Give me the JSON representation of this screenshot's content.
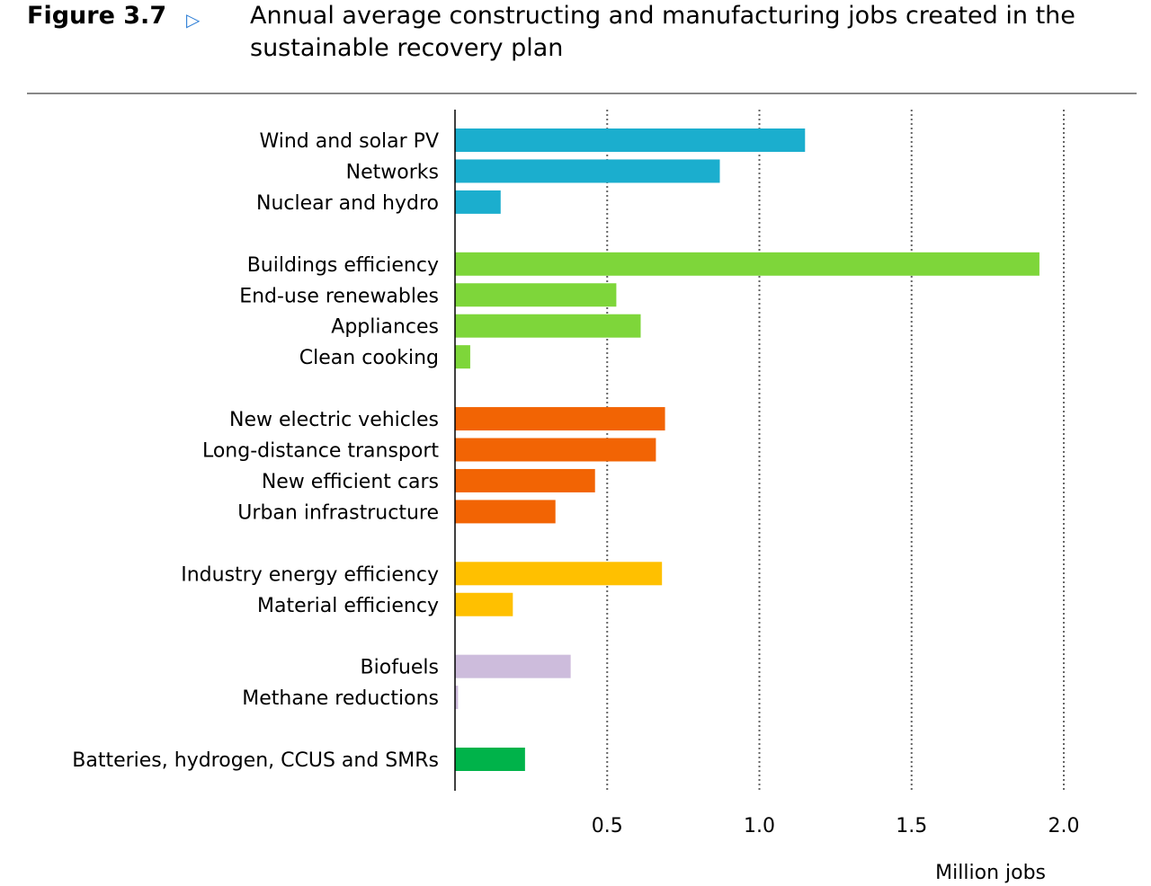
{
  "figure_label": "Figure 3.7",
  "figure_icon": "triangle-right-icon",
  "chart_data": {
    "type": "bar",
    "orientation": "horizontal",
    "title": "Annual average constructing and manufacturing jobs created in the sustainable recovery plan",
    "xlabel": "Million jobs",
    "ylabel": "",
    "xlim": [
      0,
      2.0
    ],
    "xticks": [
      "0.5",
      "1.0",
      "1.5",
      "2.0"
    ],
    "xtick_values": [
      0.5,
      1.0,
      1.5,
      2.0
    ],
    "grid": "vertical dotted",
    "legend": "none",
    "group_colors": [
      "#1BAECE",
      "#7ED63A",
      "#F26404",
      "#FFC000",
      "#CDBCDC",
      "#00B34A"
    ],
    "categories": [
      "Wind and solar PV",
      "Networks",
      "Nuclear and hydro",
      "Buildings efficiency",
      "End-use renewables",
      "Appliances",
      "Clean cooking",
      "New electric vehicles",
      "Long-distance transport",
      "New efficient cars",
      "Urban infrastructure",
      "Industry energy efficiency",
      "Material efficiency",
      "Biofuels",
      "Methane reductions",
      "Batteries, hydrogen, CCUS and SMRs"
    ],
    "values": [
      1.15,
      0.87,
      0.15,
      1.92,
      0.53,
      0.61,
      0.05,
      0.69,
      0.66,
      0.46,
      0.33,
      0.68,
      0.19,
      0.38,
      0.01,
      0.23
    ],
    "groups": [
      0,
      0,
      0,
      1,
      1,
      1,
      1,
      2,
      2,
      2,
      2,
      3,
      3,
      4,
      4,
      5
    ]
  }
}
